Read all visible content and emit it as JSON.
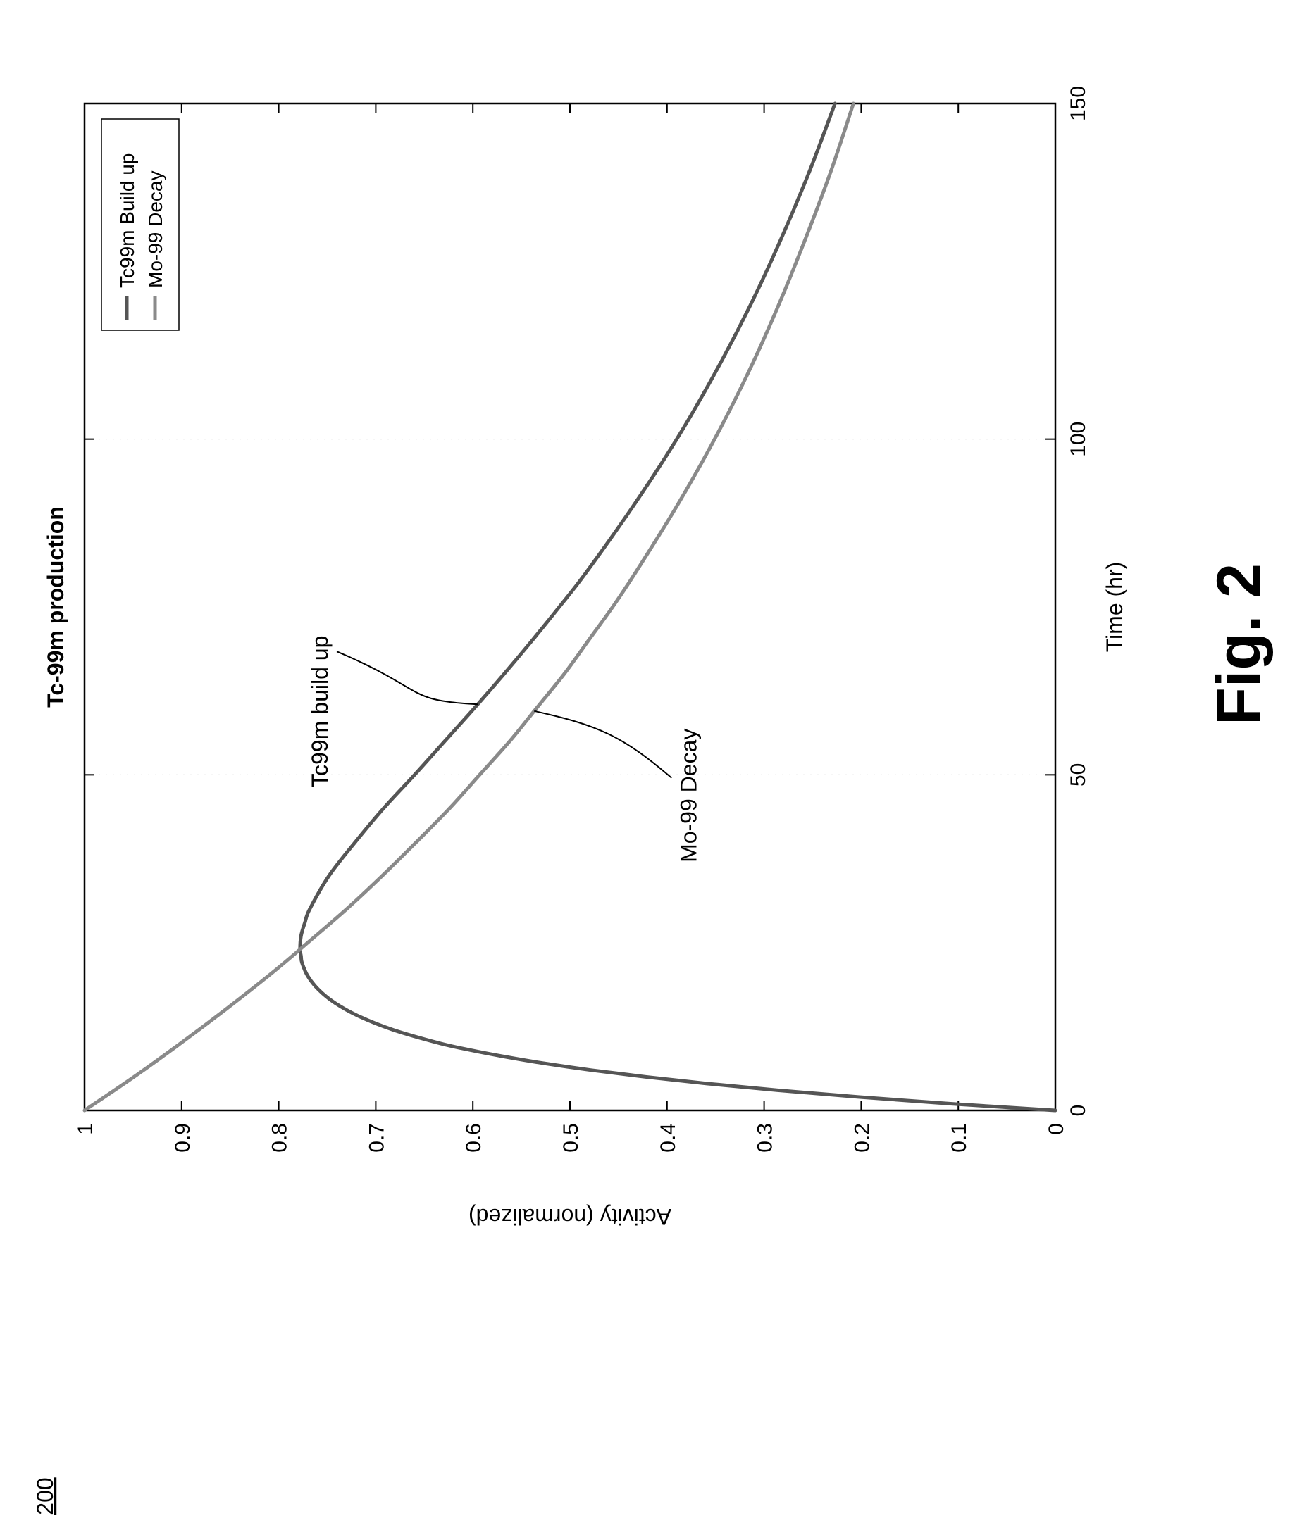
{
  "figure": {
    "ref_number": "200",
    "fig_label": "Fig. 2"
  },
  "chart_data": {
    "type": "line",
    "title": "Tc-99m production",
    "xlabel": "Time (hr)",
    "ylabel": "Activity (normalized)",
    "xlim": [
      0,
      150
    ],
    "ylim": [
      0,
      1
    ],
    "xticks": [
      "0",
      "50",
      "100",
      "150"
    ],
    "yticks": [
      "0",
      "0.1",
      "0.2",
      "0.3",
      "0.4",
      "0.5",
      "0.6",
      "0.7",
      "0.8",
      "0.9",
      "1"
    ],
    "grid": false,
    "legend_position": "top-right",
    "legend": [
      "Tc99m Build up",
      "Mo-99 Decay"
    ],
    "annotations": [
      {
        "text": "Tc99m build up",
        "points_to": "Tc99m Build up",
        "x": 60.5
      },
      {
        "text": "Mo-99 Decay",
        "points_to": "Mo-99 Decay",
        "x": 59.5
      }
    ],
    "series": [
      {
        "name": "Tc99m Build up",
        "color": "#555555",
        "x": [
          0,
          1,
          2,
          3,
          4,
          5,
          6,
          7,
          8,
          9,
          10,
          12,
          14,
          16,
          18,
          20,
          22,
          23,
          24,
          26,
          28,
          30,
          35,
          40,
          45,
          50,
          55,
          60,
          65,
          70,
          75,
          80,
          90,
          100,
          110,
          120,
          130,
          140,
          150
        ],
        "y": [
          0,
          0.108,
          0.203,
          0.286,
          0.359,
          0.422,
          0.478,
          0.526,
          0.567,
          0.603,
          0.634,
          0.682,
          0.717,
          0.742,
          0.759,
          0.77,
          0.776,
          0.777,
          0.778,
          0.777,
          0.773,
          0.768,
          0.748,
          0.721,
          0.692,
          0.66,
          0.629,
          0.598,
          0.568,
          0.539,
          0.511,
          0.484,
          0.435,
          0.39,
          0.35,
          0.314,
          0.282,
          0.253,
          0.227
        ]
      },
      {
        "name": "Mo-99 Decay",
        "color": "#8a8a8a",
        "x": [
          0,
          5,
          10,
          15,
          20,
          23,
          25,
          30,
          35,
          40,
          45,
          50,
          55,
          60,
          65,
          70,
          75,
          80,
          90,
          100,
          110,
          120,
          130,
          140,
          150
        ],
        "y": [
          1.0,
          0.949,
          0.901,
          0.855,
          0.811,
          0.786,
          0.77,
          0.73,
          0.693,
          0.658,
          0.624,
          0.593,
          0.562,
          0.534,
          0.506,
          0.481,
          0.456,
          0.433,
          0.39,
          0.351,
          0.316,
          0.285,
          0.257,
          0.231,
          0.208
        ]
      }
    ]
  }
}
